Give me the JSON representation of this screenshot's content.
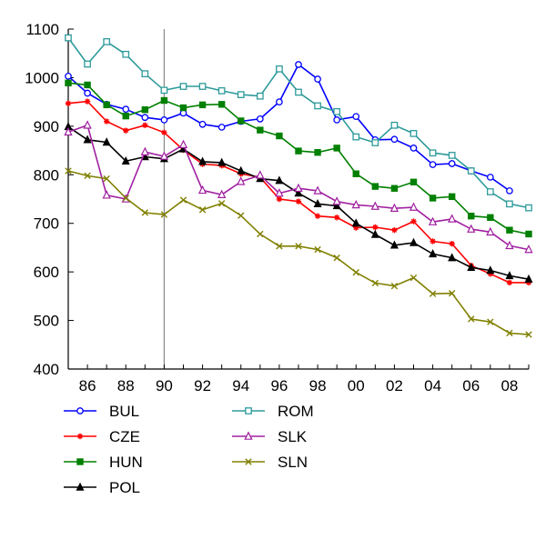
{
  "chart_data": {
    "type": "line",
    "title": "",
    "xlabel": "",
    "ylabel": "",
    "x": [
      1985,
      1986,
      1987,
      1988,
      1989,
      1990,
      1991,
      1992,
      1993,
      1994,
      1995,
      1996,
      1997,
      1998,
      1999,
      2000,
      2001,
      2002,
      2003,
      2004,
      2005,
      2006,
      2007,
      2008,
      2009
    ],
    "xlim": [
      1985,
      2009
    ],
    "ylim": [
      400,
      1100
    ],
    "x_ticks": [
      1986,
      1988,
      1990,
      1992,
      1994,
      1996,
      1998,
      2000,
      2002,
      2004,
      2006,
      2008
    ],
    "x_tick_labels": [
      "86",
      "88",
      "90",
      "92",
      "94",
      "96",
      "98",
      "00",
      "02",
      "04",
      "06",
      "08"
    ],
    "y_ticks": [
      400,
      500,
      600,
      700,
      800,
      900,
      1000,
      1100
    ],
    "y_tick_labels": [
      "400",
      "500",
      "600",
      "700",
      "800",
      "900",
      "1000",
      "1100"
    ],
    "reference_line_x": 1990,
    "grid": false,
    "legend_position": "bottom",
    "series": [
      {
        "name": "BUL",
        "color": "#0000ff",
        "marker": "circle",
        "values": [
          1003,
          968,
          945,
          935,
          918,
          913,
          927,
          904,
          898,
          910,
          915,
          950,
          1027,
          997,
          913,
          920,
          872,
          873,
          855,
          821,
          823,
          808,
          795,
          767,
          null
        ]
      },
      {
        "name": "CZE",
        "color": "#ff0000",
        "marker": "asterisk",
        "values": [
          947,
          951,
          910,
          891,
          902,
          887,
          851,
          822,
          819,
          802,
          795,
          750,
          745,
          715,
          712,
          691,
          692,
          686,
          704,
          663,
          658,
          613,
          596,
          578,
          578
        ]
      },
      {
        "name": "HUN",
        "color": "#008000",
        "marker": "square",
        "values": [
          989,
          985,
          944,
          921,
          934,
          953,
          938,
          944,
          945,
          911,
          892,
          880,
          849,
          846,
          855,
          802,
          776,
          772,
          785,
          752,
          755,
          715,
          712,
          686,
          678
        ]
      },
      {
        "name": "POL",
        "color": "#000000",
        "marker": "triangle",
        "values": [
          899,
          872,
          867,
          828,
          837,
          833,
          853,
          827,
          825,
          808,
          792,
          788,
          762,
          740,
          736,
          700,
          677,
          655,
          660,
          637,
          629,
          609,
          603,
          592,
          585
        ]
      },
      {
        "name": "ROM",
        "color": "#2e9a9a",
        "marker": "square-open",
        "values": [
          1082,
          1028,
          1074,
          1048,
          1008,
          974,
          982,
          982,
          973,
          965,
          962,
          1018,
          970,
          942,
          930,
          878,
          866,
          902,
          885,
          845,
          840,
          808,
          765,
          740,
          732
        ]
      },
      {
        "name": "SLK",
        "color": "#a020a0",
        "marker": "triangle-open",
        "values": [
          888,
          902,
          758,
          750,
          847,
          838,
          862,
          768,
          759,
          786,
          799,
          762,
          772,
          767,
          745,
          738,
          735,
          731,
          733,
          703,
          709,
          688,
          682,
          654,
          646
        ]
      },
      {
        "name": "SLN",
        "color": "#808000",
        "marker": "x",
        "values": [
          808,
          798,
          792,
          752,
          722,
          718,
          748,
          728,
          741,
          716,
          678,
          653,
          653,
          646,
          629,
          599,
          577,
          571,
          588,
          555,
          556,
          503,
          497,
          474,
          471
        ]
      }
    ]
  }
}
